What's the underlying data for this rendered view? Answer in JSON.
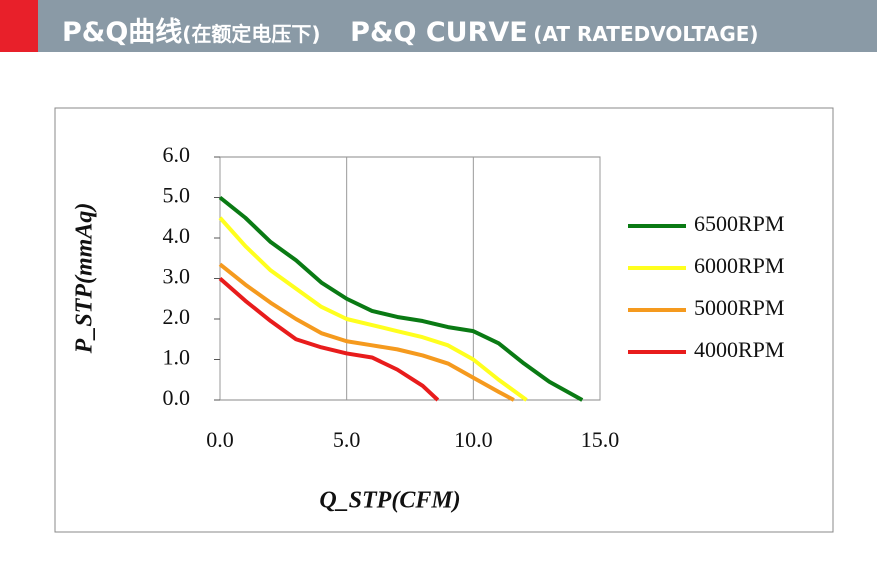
{
  "header": {
    "title_cn": "P&Q曲线",
    "title_cn_note": "(在额定电压下)",
    "title_en": "P&Q CURVE",
    "title_en_note": "(AT RATEDVOLTAGE)"
  },
  "chart_data": {
    "type": "line",
    "xlabel": "Q_STP(CFM)",
    "ylabel": "P_STP(mmAq)",
    "xlim": [
      0,
      15
    ],
    "ylim": [
      0,
      6
    ],
    "xticks": [
      {
        "value": 0,
        "label": "0.0"
      },
      {
        "value": 5,
        "label": "5.0"
      },
      {
        "value": 10,
        "label": "10.0"
      },
      {
        "value": 15,
        "label": "15.0"
      }
    ],
    "yticks": [
      {
        "value": 0,
        "label": "0.0"
      },
      {
        "value": 1,
        "label": "1.0"
      },
      {
        "value": 2,
        "label": "2.0"
      },
      {
        "value": 3,
        "label": "3.0"
      },
      {
        "value": 4,
        "label": "4.0"
      },
      {
        "value": 5,
        "label": "5.0"
      },
      {
        "value": 6,
        "label": "6.0"
      }
    ],
    "grid": "x",
    "legend": "right",
    "series": [
      {
        "name": "6500RPM",
        "color": "#0a7a14",
        "x": [
          0,
          1,
          2,
          3,
          4,
          5,
          6,
          7,
          8,
          9,
          10,
          11,
          12,
          13,
          14.3
        ],
        "values": [
          5.0,
          4.5,
          3.9,
          3.45,
          2.9,
          2.5,
          2.2,
          2.05,
          1.95,
          1.8,
          1.7,
          1.4,
          0.9,
          0.45,
          0
        ]
      },
      {
        "name": "6000RPM",
        "color": "#ffff1e",
        "x": [
          0,
          1,
          2,
          3,
          4,
          5,
          6,
          7,
          8,
          9,
          10,
          11,
          12.1
        ],
        "values": [
          4.5,
          3.8,
          3.2,
          2.75,
          2.3,
          2.0,
          1.85,
          1.7,
          1.55,
          1.35,
          1.0,
          0.5,
          0
        ]
      },
      {
        "name": "5000RPM",
        "color": "#f59a1e",
        "x": [
          0,
          1,
          2,
          3,
          4,
          5,
          6,
          7,
          8,
          9,
          10,
          11,
          11.6
        ],
        "values": [
          3.35,
          2.85,
          2.4,
          2.0,
          1.65,
          1.45,
          1.35,
          1.25,
          1.1,
          0.9,
          0.55,
          0.2,
          0
        ]
      },
      {
        "name": "4000RPM",
        "color": "#e81c1c",
        "x": [
          0,
          1,
          2,
          3,
          4,
          5,
          6,
          7,
          8,
          8.6
        ],
        "values": [
          3.0,
          2.45,
          1.95,
          1.5,
          1.3,
          1.15,
          1.05,
          0.75,
          0.35,
          0
        ]
      }
    ]
  }
}
